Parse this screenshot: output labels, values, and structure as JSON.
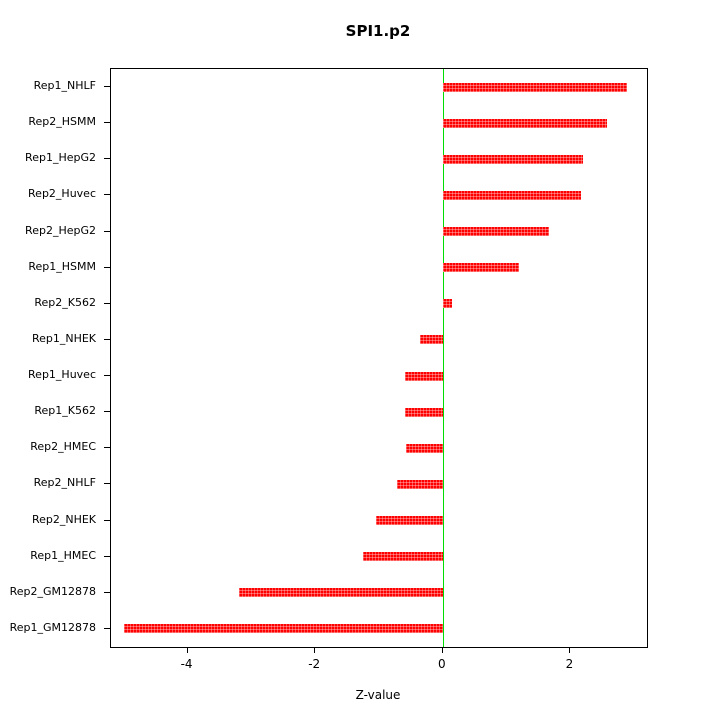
{
  "chart_data": {
    "type": "bar",
    "orientation": "horizontal",
    "title": "SPI1.p2",
    "xlabel": "Z-value",
    "ylabel": "",
    "categories": [
      "Rep1_NHLF",
      "Rep2_HSMM",
      "Rep1_HepG2",
      "Rep2_Huvec",
      "Rep2_HepG2",
      "Rep1_HSMM",
      "Rep2_K562",
      "Rep1_NHEK",
      "Rep1_Huvec",
      "Rep1_K562",
      "Rep2_HMEC",
      "Rep2_NHLF",
      "Rep2_NHEK",
      "Rep1_HMEC",
      "Rep2_GM12878",
      "Rep1_GM12878"
    ],
    "values": [
      2.88,
      2.58,
      2.2,
      2.17,
      1.66,
      1.2,
      0.15,
      -0.35,
      -0.6,
      -0.6,
      -0.58,
      -0.72,
      -1.05,
      -1.25,
      -3.2,
      -5.0
    ],
    "xlim": [
      -5.2,
      3.2
    ],
    "xticks": [
      -4,
      -2,
      0,
      2
    ],
    "bar_color": "#ff0000",
    "zero_line_color": "#00dd00",
    "grid": false,
    "legend": null
  }
}
